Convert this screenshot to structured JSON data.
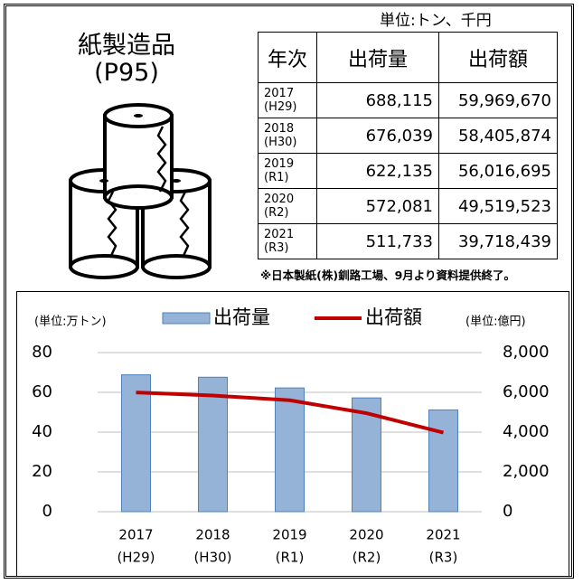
{
  "title": "紙製造品",
  "subtitle": "(P95)",
  "unit_note": "単位:トン、千円",
  "table": {
    "header": [
      "年次",
      "出荷量",
      "出荷額"
    ],
    "rows": [
      {
        "year": "2017",
        "era": "(H29)",
        "quantity": "688,115",
        "amount": "59,969,670"
      },
      {
        "year": "2018",
        "era": "(H30)",
        "quantity": "676,039",
        "amount": "58,405,874"
      },
      {
        "year": "2019",
        "era": "(R1)",
        "quantity": "622,135",
        "amount": "56,016,695"
      },
      {
        "year": "2020",
        "era": "(R2)",
        "quantity": "572,081",
        "amount": "49,519,523"
      },
      {
        "year": "2021",
        "era": "(R3)",
        "quantity": "511,733",
        "amount": "39,718,439"
      }
    ]
  },
  "footnote": "※日本製紙(株)釧路工場、9月より資料提供終了。",
  "chart_data": {
    "type": "bar",
    "categories": [
      [
        "2017",
        "(H29)"
      ],
      [
        "2018",
        "(H30)"
      ],
      [
        "2019",
        "(R1)"
      ],
      [
        "2020",
        "(R2)"
      ],
      [
        "2021",
        "(R3)"
      ]
    ],
    "y_label": "(単位:万トン)",
    "y2_label": "(単位:億円)",
    "series": [
      {
        "name": "出荷量",
        "type": "bar",
        "color": "#95b3d7",
        "border": "#4f81bd",
        "values": [
          68.8115,
          67.6039,
          62.2135,
          57.2081,
          51.1733
        ]
      },
      {
        "name": "出荷額",
        "type": "line",
        "axis": "y2",
        "color": "#c00000",
        "values": [
          5996.967,
          5840.5874,
          5601.6695,
          4951.9523,
          3971.8439
        ]
      }
    ],
    "ylim": [
      0,
      80
    ],
    "yticks": [
      0,
      20,
      40,
      60,
      80
    ],
    "y2lim": [
      0,
      8000
    ],
    "y2ticks": [
      0,
      {
        "value": 2000,
        "label": "2,000"
      },
      {
        "value": 4000,
        "label": "4,000"
      },
      {
        "value": 6000,
        "label": "6,000"
      },
      {
        "value": 8000,
        "label": "8,000"
      }
    ],
    "grid": true,
    "legend": "top"
  }
}
